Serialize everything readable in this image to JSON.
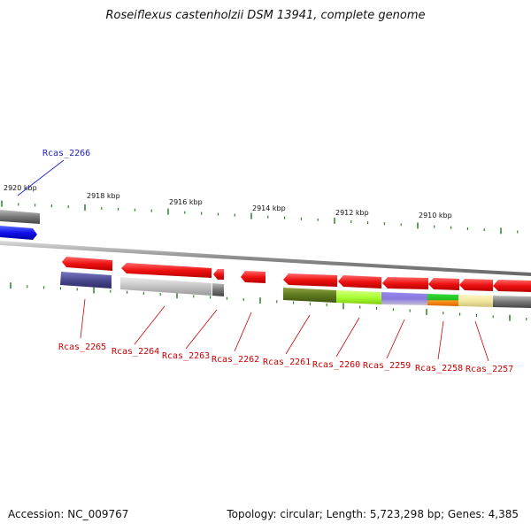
{
  "title": "Roseiflexus castenholzii DSM 13941, complete genome",
  "accession": "Accession: NC_009767",
  "summary": "Topology: circular; Length: 5,723,298 bp; Genes: 4,385",
  "colors": {
    "highlight_label": "#1a1acc",
    "gene_label": "#cc0000",
    "gene_arrow": "#ee1111",
    "tick": "#1a7a1a",
    "backbone": "#888888"
  },
  "kbp_labels": [
    "2920 kbp",
    "2918 kbp",
    "2916 kbp",
    "2914 kbp",
    "2912 kbp",
    "2910 kbp"
  ],
  "genes": [
    {
      "id": "Rcas_2266",
      "highlight": true
    },
    {
      "id": "Rcas_2265"
    },
    {
      "id": "Rcas_2264"
    },
    {
      "id": "Rcas_2263"
    },
    {
      "id": "Rcas_2262"
    },
    {
      "id": "Rcas_2261"
    },
    {
      "id": "Rcas_2260"
    },
    {
      "id": "Rcas_2259"
    },
    {
      "id": "Rcas_2258"
    },
    {
      "id": "Rcas_2257"
    }
  ]
}
